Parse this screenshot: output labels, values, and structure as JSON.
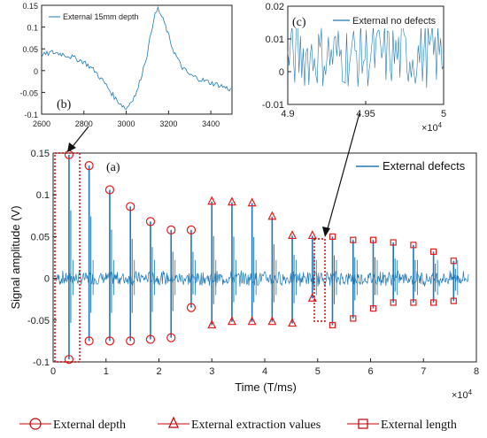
{
  "chart_data": [
    {
      "panel": "(a)",
      "type": "line",
      "xlabel": "Time (T/ms)",
      "ylabel": "Signal amplitude (V)",
      "x_exponent": "×10^4",
      "xlim": [
        0,
        8
      ],
      "ylim": [
        -0.1,
        0.15
      ],
      "x_ticks": [
        "0",
        "1",
        "2",
        "3",
        "4",
        "5",
        "6",
        "7",
        "8"
      ],
      "y_ticks": [
        "-0.1",
        "-0.05",
        "0",
        "0.05",
        "0.1",
        "0.15"
      ],
      "x_tick_values": [
        0,
        1,
        2,
        3,
        4,
        5,
        6,
        7,
        8
      ],
      "y_tick_values": [
        -0.1,
        -0.05,
        0,
        0.05,
        0.1,
        0.15
      ],
      "legend": "External defects",
      "pulse_times": [
        0.3,
        0.68,
        1.07,
        1.46,
        1.84,
        2.23,
        2.61,
        3.0,
        3.38,
        3.76,
        4.14,
        4.52,
        4.9,
        5.28,
        5.67,
        6.05,
        6.43,
        6.81,
        7.19,
        7.57
      ],
      "series": [
        {
          "name": "External depth",
          "marker": "circle",
          "x": [
            0.3,
            0.68,
            1.07,
            1.46,
            1.84,
            2.23,
            2.61
          ],
          "pos": [
            0.148,
            0.135,
            0.106,
            0.086,
            0.068,
            0.058,
            0.058
          ],
          "neg": [
            -0.097,
            -0.075,
            -0.075,
            -0.075,
            -0.073,
            -0.071,
            -0.035
          ]
        },
        {
          "name": "External extraction values",
          "marker": "triangle",
          "x": [
            3.0,
            3.38,
            3.76,
            4.14,
            4.52,
            4.9
          ],
          "pos": [
            0.092,
            0.091,
            0.09,
            0.074,
            0.051,
            0.051
          ],
          "neg": [
            -0.056,
            -0.052,
            -0.052,
            -0.052,
            -0.054,
            -0.024
          ]
        },
        {
          "name": "External length",
          "marker": "square",
          "x": [
            5.28,
            5.67,
            6.05,
            6.43,
            6.81,
            7.19,
            7.57
          ],
          "pos": [
            0.05,
            0.046,
            0.046,
            0.043,
            0.04,
            0.032,
            0.021
          ],
          "neg": [
            -0.056,
            -0.048,
            -0.036,
            -0.029,
            -0.029,
            -0.029,
            -0.027
          ]
        }
      ]
    },
    {
      "panel": "(b)",
      "type": "line",
      "xlim": [
        2600,
        3500
      ],
      "ylim": [
        -0.1,
        0.15
      ],
      "x_ticks": [
        "2600",
        "2800",
        "3000",
        "3200",
        "3400"
      ],
      "y_ticks": [
        "-0.1",
        "-0.05",
        "0",
        "0.05",
        "0.1",
        "0.15"
      ],
      "x_tick_values": [
        2600,
        2800,
        3000,
        3200,
        3400
      ],
      "y_tick_values": [
        -0.1,
        -0.05,
        0,
        0.05,
        0.1,
        0.15
      ],
      "legend": "External 15mm depth",
      "x": [
        2600,
        2650,
        2700,
        2750,
        2800,
        2850,
        2900,
        2950,
        3000,
        3050,
        3100,
        3130,
        3150,
        3180,
        3220,
        3260,
        3300,
        3350,
        3400,
        3450,
        3500
      ],
      "y": [
        0.035,
        0.042,
        0.038,
        0.03,
        0.02,
        0.0,
        -0.03,
        -0.065,
        -0.088,
        -0.05,
        0.04,
        0.12,
        0.142,
        0.11,
        0.05,
        0.01,
        -0.01,
        -0.02,
        -0.028,
        -0.035,
        -0.045
      ]
    },
    {
      "panel": "(c)",
      "type": "line",
      "xlim": [
        4.9,
        5.0
      ],
      "ylim": [
        -0.01,
        0.02
      ],
      "x_ticks": [
        "4.9",
        "4.95",
        "5"
      ],
      "y_ticks": [
        "-0.01",
        "0",
        "0.01",
        "0.02"
      ],
      "x_tick_values": [
        4.9,
        4.95,
        5.0
      ],
      "y_tick_values": [
        -0.01,
        0,
        0.01,
        0.02
      ],
      "x_exponent": "×10^4",
      "legend": "External no defects"
    }
  ],
  "legend_bottom": [
    "External depth",
    "External extraction values",
    "External length"
  ],
  "colors": {
    "signal": "#1f78b4",
    "marker": "#e41a1c",
    "dashed_box": "#c00000",
    "axis": "#222222"
  }
}
